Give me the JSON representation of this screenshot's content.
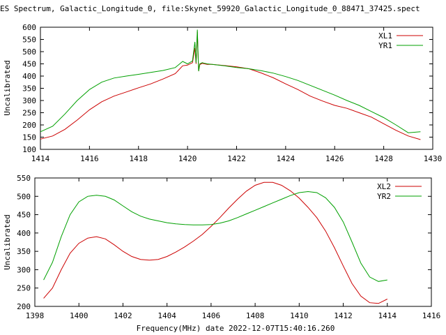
{
  "title": "ES Spectrum, Galactic_Longitude_0, file:Skynet_59920_Galactic_Longitude_0_88471_37425.spect",
  "footer_label": "Frequency(MHz) date 2022-12-07T15:40:16.260",
  "colors": {
    "red": "#cc0000",
    "green": "#00a000"
  },
  "chart_data": [
    {
      "type": "line",
      "ylabel": "Uncalibrated",
      "xlim": [
        1414,
        1430
      ],
      "ylim": [
        100,
        600
      ],
      "xticks": [
        1414,
        1416,
        1418,
        1420,
        1422,
        1424,
        1426,
        1428,
        1430
      ],
      "yticks": [
        100,
        150,
        200,
        250,
        300,
        350,
        400,
        450,
        500,
        550,
        600
      ],
      "legend_position": "top-right",
      "series": [
        {
          "name": "XL1",
          "color": "#cc0000",
          "x": [
            1414.0,
            1414.5,
            1415.0,
            1415.5,
            1416.0,
            1416.5,
            1417.0,
            1417.5,
            1418.0,
            1418.5,
            1419.0,
            1419.5,
            1419.8,
            1420.0,
            1420.2,
            1420.3,
            1420.35,
            1420.4,
            1420.45,
            1420.5,
            1420.6,
            1420.7,
            1420.8,
            1421.0,
            1421.5,
            1422.0,
            1422.5,
            1423.0,
            1423.5,
            1424.0,
            1424.5,
            1425.0,
            1425.5,
            1426.0,
            1426.5,
            1427.0,
            1427.5,
            1428.0,
            1428.5,
            1429.0,
            1429.5
          ],
          "y": [
            142,
            155,
            182,
            220,
            262,
            295,
            318,
            335,
            352,
            368,
            388,
            410,
            442,
            445,
            455,
            515,
            450,
            582,
            420,
            447,
            452,
            450,
            448,
            448,
            443,
            438,
            430,
            413,
            393,
            368,
            345,
            318,
            298,
            280,
            268,
            250,
            232,
            205,
            178,
            155,
            140
          ]
        },
        {
          "name": "YR1",
          "color": "#00a000",
          "x": [
            1414.0,
            1414.5,
            1415.0,
            1415.5,
            1416.0,
            1416.5,
            1417.0,
            1417.5,
            1418.0,
            1418.5,
            1419.0,
            1419.5,
            1419.8,
            1420.0,
            1420.2,
            1420.3,
            1420.35,
            1420.4,
            1420.45,
            1420.5,
            1420.6,
            1420.7,
            1420.8,
            1421.0,
            1421.5,
            1422.0,
            1422.5,
            1423.0,
            1423.5,
            1424.0,
            1424.5,
            1425.0,
            1425.5,
            1426.0,
            1426.5,
            1427.0,
            1427.5,
            1428.0,
            1428.5,
            1429.0,
            1429.5
          ],
          "y": [
            172,
            195,
            245,
            300,
            345,
            375,
            392,
            400,
            407,
            415,
            423,
            435,
            460,
            450,
            462,
            540,
            455,
            590,
            420,
            450,
            455,
            452,
            450,
            448,
            442,
            435,
            430,
            422,
            412,
            398,
            382,
            362,
            342,
            322,
            300,
            280,
            255,
            230,
            200,
            168,
            172
          ]
        }
      ]
    },
    {
      "type": "line",
      "ylabel": "Uncalibrated",
      "xlim": [
        1398,
        1416
      ],
      "ylim": [
        200,
        550
      ],
      "xticks": [
        1398,
        1400,
        1402,
        1404,
        1406,
        1408,
        1410,
        1412,
        1414,
        1416
      ],
      "yticks": [
        200,
        250,
        300,
        350,
        400,
        450,
        500,
        550
      ],
      "legend_position": "top-right",
      "series": [
        {
          "name": "XL2",
          "color": "#cc0000",
          "x": [
            1398.4,
            1398.8,
            1399.2,
            1399.6,
            1400.0,
            1400.4,
            1400.8,
            1401.2,
            1401.6,
            1402.0,
            1402.4,
            1402.8,
            1403.2,
            1403.6,
            1404.0,
            1404.4,
            1404.8,
            1405.2,
            1405.6,
            1406.0,
            1406.4,
            1406.8,
            1407.2,
            1407.6,
            1408.0,
            1408.4,
            1408.8,
            1409.2,
            1409.6,
            1410.0,
            1410.4,
            1410.8,
            1411.2,
            1411.6,
            1412.0,
            1412.4,
            1412.8,
            1413.2,
            1413.6,
            1414.0
          ],
          "y": [
            222,
            250,
            300,
            345,
            372,
            386,
            390,
            384,
            368,
            350,
            336,
            328,
            326,
            328,
            336,
            348,
            362,
            378,
            396,
            418,
            442,
            468,
            492,
            514,
            530,
            538,
            538,
            530,
            515,
            495,
            470,
            442,
            405,
            360,
            310,
            262,
            228,
            210,
            208,
            220
          ]
        },
        {
          "name": "YR2",
          "color": "#00a000",
          "x": [
            1398.4,
            1398.8,
            1399.2,
            1399.6,
            1400.0,
            1400.4,
            1400.8,
            1401.2,
            1401.6,
            1402.0,
            1402.4,
            1402.8,
            1403.2,
            1403.6,
            1404.0,
            1404.4,
            1404.8,
            1405.2,
            1405.6,
            1406.0,
            1406.4,
            1406.8,
            1407.2,
            1407.6,
            1408.0,
            1408.4,
            1408.8,
            1409.2,
            1409.6,
            1410.0,
            1410.4,
            1410.8,
            1411.2,
            1411.6,
            1412.0,
            1412.4,
            1412.8,
            1413.2,
            1413.6,
            1414.0
          ],
          "y": [
            272,
            320,
            390,
            450,
            485,
            500,
            503,
            500,
            490,
            474,
            458,
            446,
            438,
            433,
            428,
            425,
            423,
            422,
            422,
            423,
            427,
            433,
            442,
            452,
            462,
            472,
            482,
            492,
            502,
            510,
            513,
            510,
            496,
            470,
            430,
            375,
            318,
            280,
            268,
            272
          ]
        }
      ]
    }
  ]
}
